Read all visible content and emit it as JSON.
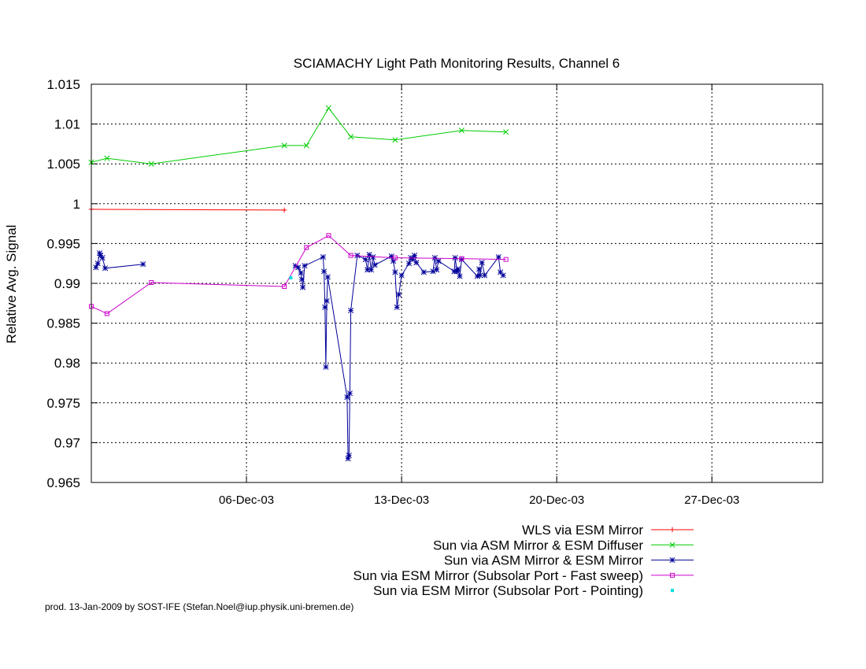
{
  "footer": "prod. 13-Jan-2009 by SOST-IFE (Stefan.Noel@iup.physik.uni-bremen.de)",
  "chart_data": {
    "type": "line",
    "title": "SCIAMACHY Light Path Monitoring Results, Channel 6",
    "xlabel": "",
    "ylabel": "Relative Avg. Signal",
    "x_type": "date",
    "xlim": [
      "2003-11-29",
      "2004-01-01"
    ],
    "ylim": [
      0.965,
      1.015
    ],
    "yticks": [
      0.965,
      0.97,
      0.975,
      0.98,
      0.985,
      0.99,
      0.995,
      1,
      1.005,
      1.01,
      1.015
    ],
    "ytick_labels": [
      "0.965",
      "0.97",
      "0.975",
      "0.98",
      "0.985",
      "0.99",
      "0.995",
      "1",
      "1.005",
      "1.01",
      "1.015"
    ],
    "xticks": [
      "2003-12-06",
      "2003-12-13",
      "2003-12-20",
      "2003-12-27"
    ],
    "xtick_labels": [
      "06-Dec-03",
      "13-Dec-03",
      "20-Dec-03",
      "27-Dec-03"
    ],
    "grid": true,
    "legend_position": "bottom-center",
    "series": [
      {
        "name": "WLS via ESM Mirror",
        "color": "#ff0000",
        "marker": "plus",
        "line": true,
        "points": [
          {
            "x": "2003-11-29T00:00",
            "y": 0.9993
          },
          {
            "x": "2003-12-07T17:00",
            "y": 0.9992
          }
        ]
      },
      {
        "name": "Sun via ASM Mirror & ESM Diffuser",
        "color": "#00cc00",
        "marker": "cross",
        "line": true,
        "points": [
          {
            "x": "2003-11-29T00:00",
            "y": 1.0052
          },
          {
            "x": "2003-11-29T17:00",
            "y": 1.0057
          },
          {
            "x": "2003-12-01T17:00",
            "y": 1.005
          },
          {
            "x": "2003-12-07T17:00",
            "y": 1.0073
          },
          {
            "x": "2003-12-08T17:00",
            "y": 1.0073
          },
          {
            "x": "2003-12-09T17:00",
            "y": 1.012
          },
          {
            "x": "2003-12-10T17:00",
            "y": 1.0084
          },
          {
            "x": "2003-12-12T17:00",
            "y": 1.008
          },
          {
            "x": "2003-12-15T17:00",
            "y": 1.0092
          },
          {
            "x": "2003-12-17T17:00",
            "y": 1.009
          }
        ]
      },
      {
        "name": "Sun via ASM Mirror & ESM Mirror",
        "color": "#000099",
        "marker": "star",
        "line": true,
        "segments": [
          [
            {
              "x": "2003-11-29T05:00",
              "y": 0.992
            },
            {
              "x": "2003-11-29T07:00",
              "y": 0.9925
            },
            {
              "x": "2003-11-29T09:00",
              "y": 0.9938
            },
            {
              "x": "2003-11-29T10:00",
              "y": 0.9935
            },
            {
              "x": "2003-11-29T12:00",
              "y": 0.9932
            },
            {
              "x": "2003-11-29T15:00",
              "y": 0.9919
            },
            {
              "x": "2003-12-01T08:00",
              "y": 0.9924
            }
          ],
          [
            {
              "x": "2003-12-08T05:00",
              "y": 0.9922
            },
            {
              "x": "2003-12-08T08:00",
              "y": 0.992
            },
            {
              "x": "2003-12-08T11:00",
              "y": 0.9913
            },
            {
              "x": "2003-12-08T12:00",
              "y": 0.9905
            },
            {
              "x": "2003-12-08T13:00",
              "y": 0.9895
            },
            {
              "x": "2003-12-08T15:00",
              "y": 0.9922
            },
            {
              "x": "2003-12-09T11:00",
              "y": 0.9933
            },
            {
              "x": "2003-12-09T12:00",
              "y": 0.9915
            },
            {
              "x": "2003-12-09T13:00",
              "y": 0.987
            },
            {
              "x": "2003-12-09T14:00",
              "y": 0.9795
            },
            {
              "x": "2003-12-09T15:00",
              "y": 0.9878
            },
            {
              "x": "2003-12-09T16:00",
              "y": 0.9908
            },
            {
              "x": "2003-12-10T13:00",
              "y": 0.9757
            },
            {
              "x": "2003-12-10T14:00",
              "y": 0.968
            },
            {
              "x": "2003-12-10T15:00",
              "y": 0.9684
            },
            {
              "x": "2003-12-10T16:00",
              "y": 0.9762
            },
            {
              "x": "2003-12-10T17:00",
              "y": 0.9866
            },
            {
              "x": "2003-12-11T00:00",
              "y": 0.9935
            },
            {
              "x": "2003-12-11T09:00",
              "y": 0.993
            },
            {
              "x": "2003-12-11T11:00",
              "y": 0.9917
            },
            {
              "x": "2003-12-11T13:00",
              "y": 0.9936
            },
            {
              "x": "2003-12-11T15:00",
              "y": 0.9917
            },
            {
              "x": "2003-12-11T17:00",
              "y": 0.9933
            },
            {
              "x": "2003-12-11T19:00",
              "y": 0.9923
            },
            {
              "x": "2003-12-12T13:00",
              "y": 0.9934
            },
            {
              "x": "2003-12-12T15:00",
              "y": 0.9928
            },
            {
              "x": "2003-12-12T17:00",
              "y": 0.9914
            },
            {
              "x": "2003-12-12T19:00",
              "y": 0.987
            },
            {
              "x": "2003-12-12T21:00",
              "y": 0.9886
            },
            {
              "x": "2003-12-13T00:00",
              "y": 0.991
            },
            {
              "x": "2003-12-13T08:00",
              "y": 0.9925
            },
            {
              "x": "2003-12-13T10:00",
              "y": 0.9932
            },
            {
              "x": "2003-12-13T12:00",
              "y": 0.993
            },
            {
              "x": "2003-12-13T14:00",
              "y": 0.9935
            },
            {
              "x": "2003-12-13T16:00",
              "y": 0.9926
            },
            {
              "x": "2003-12-14T00:00",
              "y": 0.9914
            },
            {
              "x": "2003-12-14T10:00",
              "y": 0.9915
            },
            {
              "x": "2003-12-14T12:00",
              "y": 0.9932
            },
            {
              "x": "2003-12-14T14:00",
              "y": 0.9917
            },
            {
              "x": "2003-12-14T16:00",
              "y": 0.9928
            },
            {
              "x": "2003-12-15T09:00",
              "y": 0.9915
            },
            {
              "x": "2003-12-15T10:00",
              "y": 0.9932
            },
            {
              "x": "2003-12-15T12:00",
              "y": 0.9915
            },
            {
              "x": "2003-12-15T13:00",
              "y": 0.9918
            },
            {
              "x": "2003-12-15T15:00",
              "y": 0.9909
            },
            {
              "x": "2003-12-15T17:00",
              "y": 0.993
            },
            {
              "x": "2003-12-16T10:00",
              "y": 0.9909
            },
            {
              "x": "2003-12-16T12:00",
              "y": 0.9918
            },
            {
              "x": "2003-12-16T13:00",
              "y": 0.991
            },
            {
              "x": "2003-12-16T15:00",
              "y": 0.9926
            },
            {
              "x": "2003-12-16T18:00",
              "y": 0.991
            },
            {
              "x": "2003-12-17T09:00",
              "y": 0.9933
            },
            {
              "x": "2003-12-17T11:00",
              "y": 0.9914
            },
            {
              "x": "2003-12-17T14:00",
              "y": 0.991
            }
          ]
        ]
      },
      {
        "name": "Sun via ESM Mirror (Subsolar Port - Fast sweep)",
        "color": "#cc00cc",
        "marker": "square",
        "line": true,
        "points": [
          {
            "x": "2003-11-29T00:00",
            "y": 0.9871
          },
          {
            "x": "2003-11-29T17:00",
            "y": 0.9862
          },
          {
            "x": "2003-12-01T17:00",
            "y": 0.9901
          },
          {
            "x": "2003-12-07T17:00",
            "y": 0.9896
          },
          {
            "x": "2003-12-08T17:00",
            "y": 0.9945
          },
          {
            "x": "2003-12-09T17:00",
            "y": 0.996
          },
          {
            "x": "2003-12-10T17:00",
            "y": 0.9935
          },
          {
            "x": "2003-12-12T17:00",
            "y": 0.9932
          },
          {
            "x": "2003-12-15T17:00",
            "y": 0.9931
          },
          {
            "x": "2003-12-17T17:00",
            "y": 0.993
          }
        ]
      },
      {
        "name": "Sun via ESM Mirror (Subsolar Port - Pointing)",
        "color": "#00dddd",
        "marker": "dot",
        "line": false,
        "points": [
          {
            "x": "2003-12-08T00:00",
            "y": 0.9907
          }
        ]
      }
    ]
  }
}
